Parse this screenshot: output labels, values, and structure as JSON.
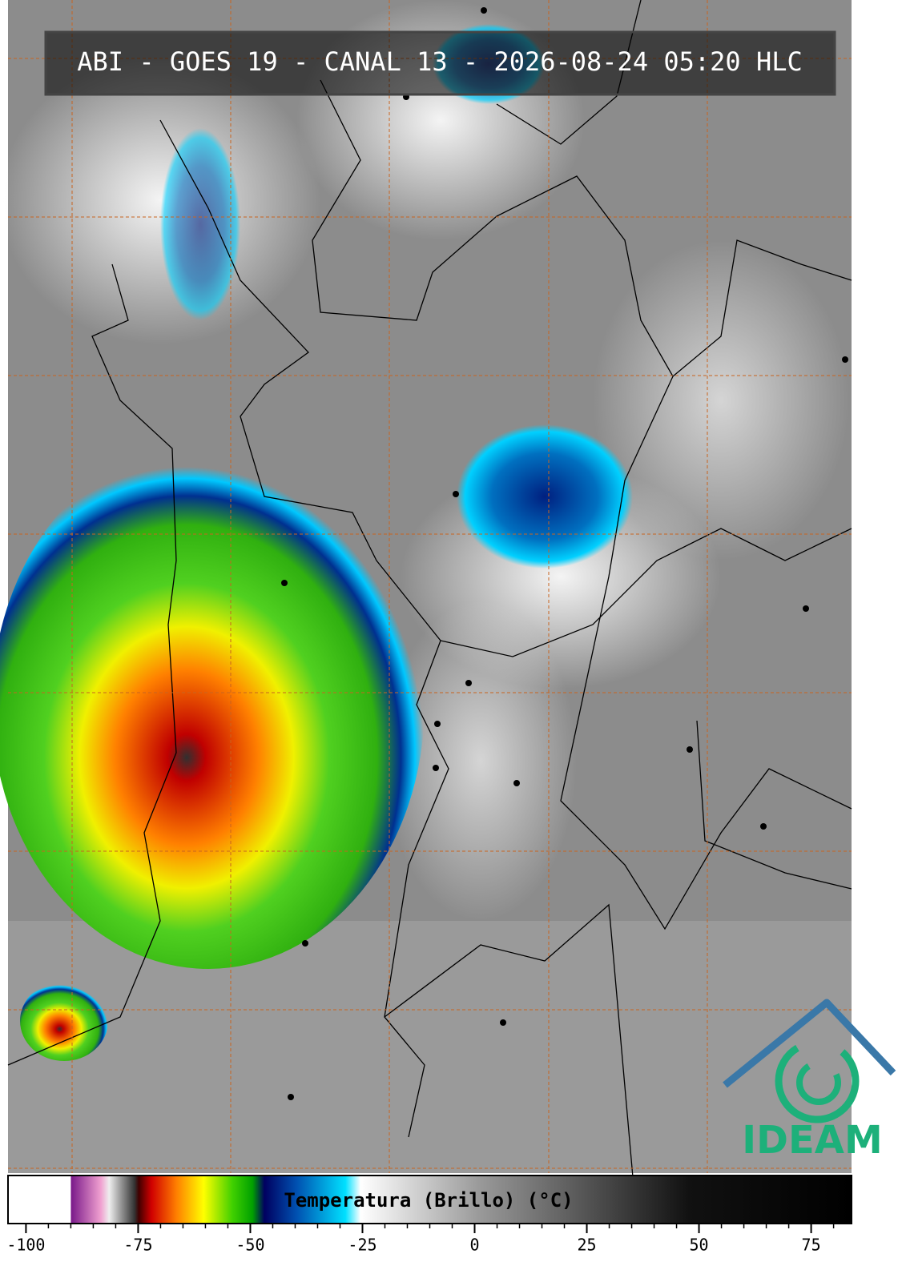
{
  "title": "ABI - GOES 19 - CANAL 13 - 2026-08-24 05:20 HLC",
  "colorbar": {
    "label": "Temperatura (Brillo) (°C)",
    "range": [
      -104,
      84
    ],
    "ticks": [
      -100,
      -75,
      -50,
      -25,
      0,
      25,
      50,
      75
    ],
    "minor_step": 5
  },
  "logo": "IDEAM"
}
